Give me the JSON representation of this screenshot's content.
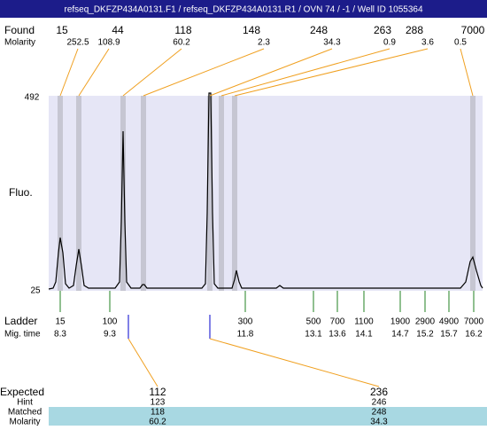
{
  "header": {
    "title": "refseq_DKFZP434A0131.F1 / refseq_DKFZP434A0131.R1 / OVN 74 / -1 / Well ID 1055364"
  },
  "found": {
    "label": "Found",
    "values": [
      "15",
      "44",
      "118",
      "148",
      "248",
      "263",
      "288",
      "7000"
    ],
    "molarity_label": "Molarity",
    "molarity": [
      "252.5",
      "108.9",
      "60.2",
      "2.3",
      "34.3",
      "0.9",
      "3.6",
      "0.5"
    ]
  },
  "axis": {
    "top": "492",
    "bottom": "25",
    "label": "Fluo."
  },
  "ladder": {
    "label": "Ladder",
    "sizes": [
      "15",
      "100",
      "300",
      "500",
      "700",
      "1100",
      "1900",
      "2900",
      "4900",
      "7000"
    ],
    "mig_label": "Mig. time",
    "mig_times": [
      "8.3",
      "9.3",
      "11.8",
      "13.1",
      "13.6",
      "14.1",
      "14.7",
      "15.2",
      "15.7",
      "16.2"
    ]
  },
  "expected": {
    "label": "Expected",
    "values": [
      "112",
      "236"
    ],
    "rows": [
      {
        "label": "Hint",
        "values": [
          "123",
          "246"
        ]
      },
      {
        "label": "Matched",
        "values": [
          "118",
          "248"
        ]
      },
      {
        "label": "Molarity",
        "values": [
          "60.2",
          "34.3"
        ]
      }
    ]
  }
}
